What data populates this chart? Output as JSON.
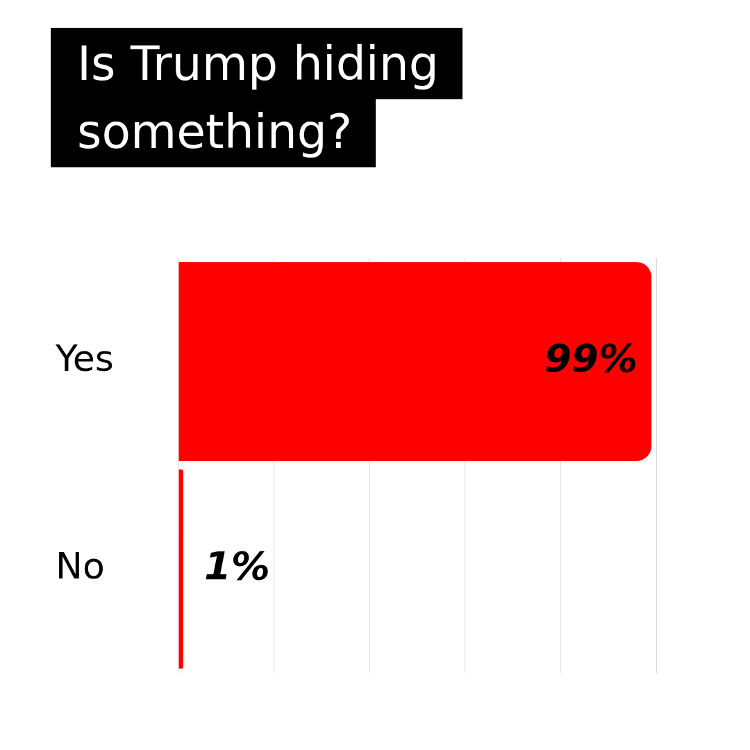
{
  "chart_data": {
    "type": "bar",
    "orientation": "horizontal",
    "title": "Is Trump hiding something?",
    "categories": [
      "Yes",
      "No"
    ],
    "values": [
      99,
      1
    ],
    "color": "#ff0000",
    "xlim": [
      0,
      100
    ],
    "xticks": [
      {
        "value": 0,
        "label": null
      },
      {
        "value": 20,
        "label": null
      },
      {
        "value": 40,
        "label": null
      },
      {
        "value": 60,
        "label": null
      },
      {
        "value": 80,
        "label": null
      },
      {
        "value": 100,
        "label": null
      }
    ],
    "grid": "x",
    "tick_labels": "y",
    "legend": false,
    "value_labels": [
      "99%",
      "1%"
    ]
  }
}
